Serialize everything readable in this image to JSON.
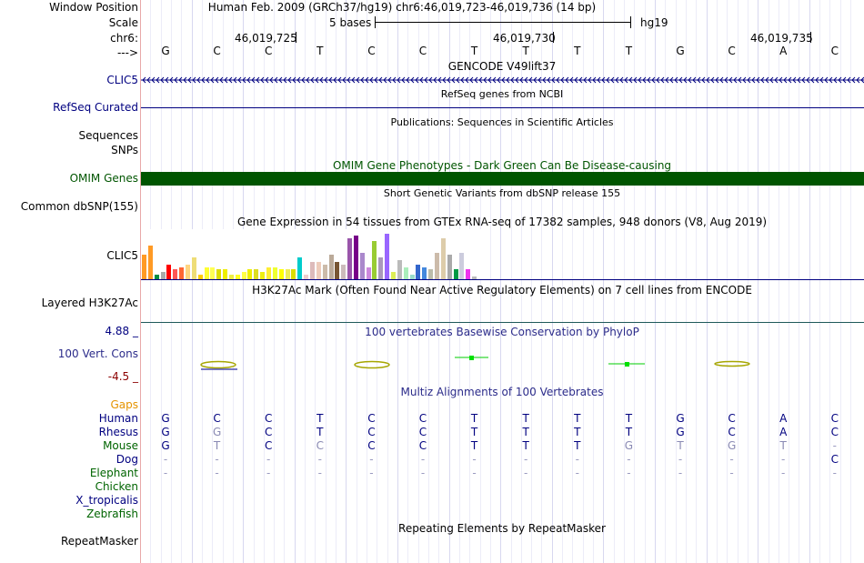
{
  "header": {
    "window_position_label": "Window Position",
    "scale_label": "Scale",
    "chrom_label": "chr6:",
    "strand_label": "--->",
    "title": "Human Feb. 2009 (GRCh37/hg19)   chr6:46,019,723-46,019,736 (14 bp)",
    "scale_text": "5 bases",
    "assembly": "hg19",
    "positions": [
      "46,019,725",
      "46,019,730",
      "46,019,735"
    ],
    "sequence": [
      "G",
      "C",
      "C",
      "T",
      "C",
      "C",
      "T",
      "T",
      "T",
      "T",
      "G",
      "C",
      "A",
      "C"
    ]
  },
  "tracks": {
    "gencode": {
      "title": "GENCODE V49lift37",
      "gene_label": "CLIC5"
    },
    "refseq": {
      "title": "RefSeq genes from NCBI",
      "label": "RefSeq Curated"
    },
    "publications": {
      "title": "Publications: Sequences in Scientific Articles",
      "label": "Sequences"
    },
    "snps": {
      "label": "SNPs"
    },
    "omim": {
      "title": "OMIM Gene Phenotypes - Dark Green Can Be Disease-causing",
      "label": "OMIM Genes",
      "color": "#005500"
    },
    "dbsnp": {
      "title": "Short Genetic Variants from dbSNP release 155",
      "label": "Common dbSNP(155)"
    },
    "gtex": {
      "title": "Gene Expression in 54 tissues from GTEx RNA-seq of 17382 samples, 948 donors (V8, Aug 2019)",
      "label": "CLIC5",
      "values": [
        10,
        14,
        2,
        3,
        6,
        4,
        5,
        6,
        9,
        2,
        5,
        5,
        4,
        4,
        2,
        2,
        3,
        4,
        4,
        3,
        5,
        5,
        4,
        4,
        4,
        9,
        2,
        7,
        7,
        6,
        10,
        7,
        6,
        17,
        18,
        11,
        5,
        16,
        9,
        19,
        3,
        8,
        5,
        2,
        6,
        5,
        4,
        11,
        17,
        10,
        4,
        11,
        4,
        1
      ],
      "colors": [
        "#ff9a25",
        "#ff9a25",
        "#008b41",
        "#aaaaaa",
        "#ff0000",
        "#ff5555",
        "#ff6633",
        "#ffd580",
        "#eedd77",
        "#ffcc00",
        "#ffff33",
        "#ffff55",
        "#dddd00",
        "#eeee00",
        "#eeee44",
        "#ffff22",
        "#ffff44",
        "#eeee00",
        "#dddd22",
        "#eeee11",
        "#ffee33",
        "#eeff33",
        "#ffff00",
        "#eeee55",
        "#dddd00",
        "#00cccc",
        "#eecccc",
        "#ddbbbb",
        "#eeccbb",
        "#ccbbaa",
        "#bbaa99",
        "#775533",
        "#ccbbbb",
        "#9955aa",
        "#770088",
        "#aa88cc",
        "#cc88dd",
        "#99cc33",
        "#aa99bb",
        "#9966ff",
        "#ddee55",
        "#bbbbbb",
        "#aaeebb",
        "#99ddcc",
        "#3366cc",
        "#4488dd",
        "#bbbbaa",
        "#ccbbaa",
        "#ddccaa",
        "#aaaaaa",
        "#009944",
        "#ccccdd",
        "#ee33ee",
        "#bbbbbb"
      ]
    },
    "h3k27ac": {
      "title": "H3K27Ac Mark (Often Found Near Active Regulatory Elements) on 7 cell lines from ENCODE",
      "label": "Layered H3K27Ac"
    },
    "phylop": {
      "title": "100 vertebrates Basewise Conservation by PhyloP",
      "label": "100 Vert. Cons",
      "max_label": "4.88 _",
      "min_label": "-4.5 _"
    },
    "multiz": {
      "title": "Multiz Alignments of 100 Vertebrates",
      "gaps_label": "Gaps",
      "species": [
        {
          "name": "Human",
          "color": "#000080",
          "bases": [
            "G",
            "C",
            "C",
            "T",
            "C",
            "C",
            "T",
            "T",
            "T",
            "T",
            "G",
            "C",
            "A",
            "C"
          ]
        },
        {
          "name": "Rhesus",
          "color": "#000080",
          "bases": [
            "G",
            "G",
            "C",
            "T",
            "C",
            "C",
            "T",
            "T",
            "T",
            "T",
            "G",
            "C",
            "A",
            "C"
          ]
        },
        {
          "name": "Mouse",
          "color": "#006400",
          "bases": [
            "G",
            "T",
            "C",
            "C",
            "C",
            "C",
            "T",
            "T",
            "T",
            "G",
            "T",
            "G",
            "T",
            "-"
          ]
        },
        {
          "name": "Dog",
          "color": "#000080",
          "bases": [
            "-",
            "-",
            "-",
            "-",
            "-",
            "-",
            "-",
            "-",
            "-",
            "-",
            "-",
            "-",
            "-",
            "C"
          ]
        },
        {
          "name": "Elephant",
          "color": "#006400",
          "bases": [
            "-",
            "-",
            "-",
            "-",
            "-",
            "-",
            "-",
            "-",
            "-",
            "-",
            "-",
            "-",
            "-",
            "-"
          ]
        },
        {
          "name": "Chicken",
          "color": "#006400",
          "bases": []
        },
        {
          "name": "X_tropicalis",
          "color": "#000080",
          "bases": []
        },
        {
          "name": "Zebrafish",
          "color": "#006400",
          "bases": []
        }
      ]
    },
    "repeatmasker": {
      "title": "Repeating Elements by RepeatMasker",
      "label": "RepeatMasker"
    }
  },
  "colors": {
    "label_blue": "#000080",
    "label_green": "#006400",
    "phylop_title": "#2b2b8a",
    "phylop_max": "#000080",
    "phylop_min": "#8b0000",
    "gaps": "#e59400",
    "bright_green": "#00e000",
    "olive": "#a6a600"
  }
}
